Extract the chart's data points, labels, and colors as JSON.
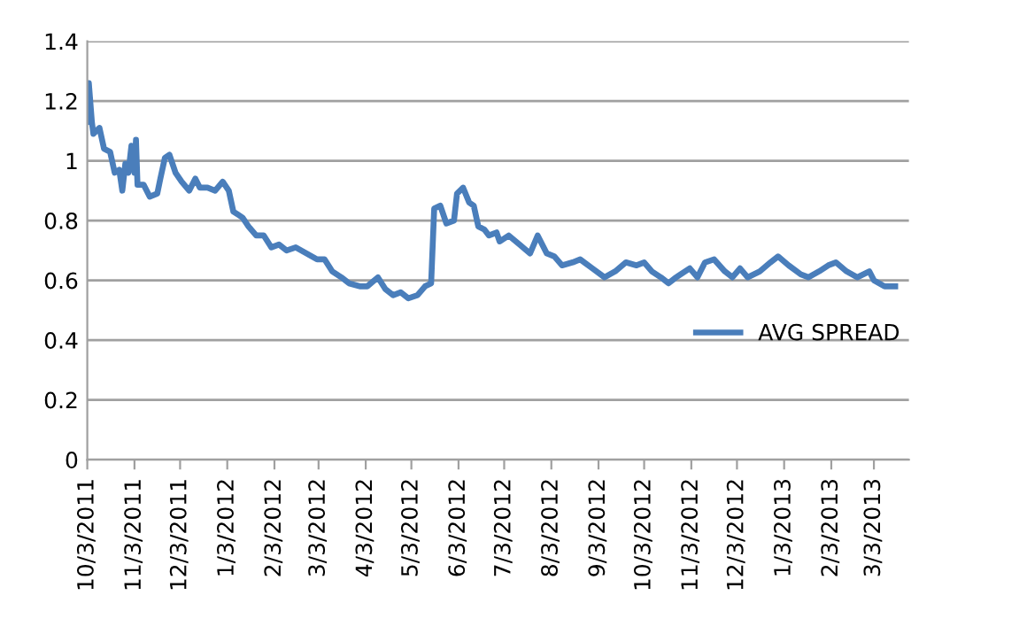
{
  "chart_data": {
    "type": "line",
    "x": [
      "2011-10-03",
      "2011-10-04",
      "2011-10-06",
      "2011-10-07",
      "2011-10-11",
      "2011-10-14",
      "2011-10-18",
      "2011-10-21",
      "2011-10-24",
      "2011-10-26",
      "2011-10-28",
      "2011-10-30",
      "2011-11-01",
      "2011-11-03",
      "2011-11-04",
      "2011-11-05",
      "2011-11-09",
      "2011-11-13",
      "2011-11-18",
      "2011-11-20",
      "2011-11-23",
      "2011-11-26",
      "2011-11-30",
      "2011-12-04",
      "2011-12-09",
      "2011-12-13",
      "2011-12-16",
      "2011-12-21",
      "2011-12-26",
      "2011-12-31",
      "2012-01-04",
      "2012-01-07",
      "2012-01-10",
      "2012-01-13",
      "2012-01-17",
      "2012-01-22",
      "2012-01-27",
      "2012-02-01",
      "2012-02-06",
      "2012-02-11",
      "2012-02-17",
      "2012-02-24",
      "2012-03-02",
      "2012-03-07",
      "2012-03-12",
      "2012-03-18",
      "2012-03-23",
      "2012-03-30",
      "2012-04-04",
      "2012-04-11",
      "2012-04-16",
      "2012-04-21",
      "2012-04-26",
      "2012-05-01",
      "2012-05-07",
      "2012-05-12",
      "2012-05-16",
      "2012-05-18",
      "2012-05-22",
      "2012-05-26",
      "2012-05-31",
      "2012-06-02",
      "2012-06-06",
      "2012-06-10",
      "2012-06-13",
      "2012-06-16",
      "2012-06-20",
      "2012-06-23",
      "2012-06-28",
      "2012-06-30",
      "2012-07-06",
      "2012-07-13",
      "2012-07-20",
      "2012-07-25",
      "2012-07-31",
      "2012-08-05",
      "2012-08-10",
      "2012-08-17",
      "2012-08-22",
      "2012-08-30",
      "2012-09-07",
      "2012-09-14",
      "2012-09-21",
      "2012-09-28",
      "2012-10-03",
      "2012-10-08",
      "2012-10-14",
      "2012-10-19",
      "2012-10-24",
      "2012-11-02",
      "2012-11-07",
      "2012-11-12",
      "2012-11-18",
      "2012-11-25",
      "2012-11-30",
      "2012-12-05",
      "2012-12-10",
      "2012-12-18",
      "2012-12-25",
      "2012-12-30",
      "2013-01-06",
      "2013-01-14",
      "2013-01-19",
      "2013-01-26",
      "2013-02-01",
      "2013-02-06",
      "2013-02-13",
      "2013-02-20",
      "2013-02-28",
      "2013-03-03",
      "2013-03-10",
      "2013-03-17"
    ],
    "series": [
      {
        "name": "AVG SPREAD",
        "color": "#4a7ebb",
        "values": [
          1.13,
          1.26,
          1.13,
          1.09,
          1.11,
          1.04,
          1.03,
          0.96,
          0.97,
          0.9,
          0.99,
          0.96,
          1.05,
          0.96,
          1.07,
          0.92,
          0.92,
          0.88,
          0.89,
          0.94,
          1.01,
          1.02,
          0.96,
          0.93,
          0.9,
          0.94,
          0.91,
          0.91,
          0.9,
          0.93,
          0.9,
          0.83,
          0.82,
          0.81,
          0.78,
          0.75,
          0.75,
          0.71,
          0.72,
          0.7,
          0.71,
          0.69,
          0.67,
          0.67,
          0.63,
          0.61,
          0.59,
          0.58,
          0.58,
          0.61,
          0.57,
          0.55,
          0.56,
          0.54,
          0.55,
          0.58,
          0.59,
          0.84,
          0.85,
          0.79,
          0.8,
          0.89,
          0.91,
          0.86,
          0.85,
          0.78,
          0.77,
          0.75,
          0.76,
          0.73,
          0.75,
          0.72,
          0.69,
          0.75,
          0.69,
          0.68,
          0.65,
          0.66,
          0.67,
          0.64,
          0.61,
          0.63,
          0.66,
          0.65,
          0.66,
          0.63,
          0.61,
          0.59,
          0.61,
          0.64,
          0.61,
          0.66,
          0.67,
          0.63,
          0.61,
          0.64,
          0.61,
          0.63,
          0.66,
          0.68,
          0.65,
          0.62,
          0.61,
          0.63,
          0.65,
          0.66,
          0.63,
          0.61,
          0.63,
          0.6,
          0.58,
          0.58
        ]
      }
    ],
    "xlim": [
      "2011-10-03",
      "2013-03-26"
    ],
    "xticks": [
      {
        "value": "2011-10-03",
        "label": "10/3/2011"
      },
      {
        "value": "2011-11-03",
        "label": "11/3/2011"
      },
      {
        "value": "2011-12-03",
        "label": "12/3/2011"
      },
      {
        "value": "2012-01-03",
        "label": "1/3/2012"
      },
      {
        "value": "2012-02-03",
        "label": "2/3/2012"
      },
      {
        "value": "2012-03-03",
        "label": "3/3/2012"
      },
      {
        "value": "2012-04-03",
        "label": "4/3/2012"
      },
      {
        "value": "2012-05-03",
        "label": "5/3/2012"
      },
      {
        "value": "2012-06-03",
        "label": "6/3/2012"
      },
      {
        "value": "2012-07-03",
        "label": "7/3/2012"
      },
      {
        "value": "2012-08-03",
        "label": "8/3/2012"
      },
      {
        "value": "2012-09-03",
        "label": "9/3/2012"
      },
      {
        "value": "2012-10-03",
        "label": "10/3/2012"
      },
      {
        "value": "2012-11-03",
        "label": "11/3/2012"
      },
      {
        "value": "2012-12-03",
        "label": "12/3/2012"
      },
      {
        "value": "2013-01-03",
        "label": "1/3/2013"
      },
      {
        "value": "2013-02-03",
        "label": "2/3/2013"
      },
      {
        "value": "2013-03-03",
        "label": "3/3/2013"
      }
    ],
    "ylim": [
      0,
      1.4
    ],
    "yticks": [
      0,
      0.2,
      0.4,
      0.6,
      0.8,
      1,
      1.2,
      1.4
    ],
    "grid": "y",
    "legend": "right",
    "marker": "none",
    "line_style": "solid"
  }
}
